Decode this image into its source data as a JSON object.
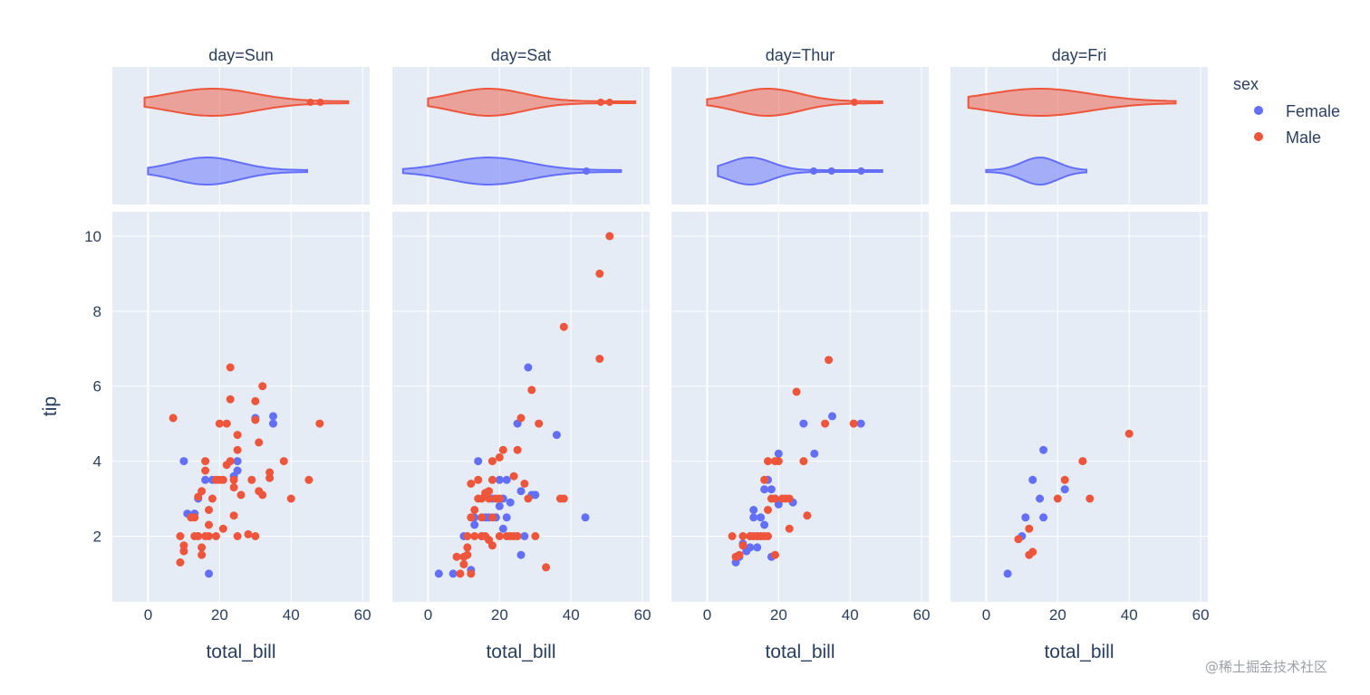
{
  "chart_data": {
    "type": "scatter",
    "facet_by": "day",
    "facets": [
      "day=Sun",
      "day=Sat",
      "day=Thur",
      "day=Fri"
    ],
    "xlabel": "total_bill",
    "ylabel": "tip",
    "x_range": [
      -10,
      62
    ],
    "y_range": [
      0.25,
      10.65
    ],
    "x_ticks": [
      0,
      20,
      40,
      60
    ],
    "y_ticks": [
      2,
      4,
      6,
      8,
      10
    ],
    "marginal_x": "violin",
    "grid": true,
    "legend": {
      "title": "sex",
      "position": "right",
      "items": [
        {
          "name": "Female",
          "color": "#636efa"
        },
        {
          "name": "Male",
          "color": "#ef553b"
        }
      ]
    },
    "violins": [
      {
        "facet": 0,
        "sex": "Male",
        "range": [
          -1,
          56
        ],
        "points": [
          45.4,
          48.2
        ],
        "peak": 18,
        "spread": 12
      },
      {
        "facet": 0,
        "sex": "Female",
        "range": [
          0,
          44.5
        ],
        "points": [],
        "peak": 16.5,
        "spread": 9
      },
      {
        "facet": 1,
        "sex": "Male",
        "range": [
          0,
          58
        ],
        "points": [
          48.3,
          50.8
        ],
        "peak": 17,
        "spread": 10
      },
      {
        "facet": 1,
        "sex": "Female",
        "range": [
          -7,
          54
        ],
        "points": [
          44.3
        ],
        "peak": 17,
        "spread": 11
      },
      {
        "facet": 2,
        "sex": "Male",
        "range": [
          0,
          49
        ],
        "points": [
          41.2
        ],
        "peak": 17,
        "spread": 9
      },
      {
        "facet": 2,
        "sex": "Female",
        "range": [
          3,
          49
        ],
        "points": [
          29.8,
          34.8,
          43.1
        ],
        "peak": 12,
        "spread": 6
      },
      {
        "facet": 3,
        "sex": "Male",
        "range": [
          -5,
          53
        ],
        "points": [],
        "peak": 15,
        "spread": 14
      },
      {
        "facet": 3,
        "sex": "Female",
        "range": [
          0,
          28
        ],
        "points": [],
        "peak": 15,
        "spread": 5
      }
    ],
    "series": [
      {
        "name": "Female",
        "color": "#636efa",
        "facets": [
          [
            [
              10,
              4.0
            ],
            [
              11,
              2.6
            ],
            [
              13,
              2.6
            ],
            [
              14,
              3.0
            ],
            [
              16,
              3.5
            ],
            [
              17,
              1.0
            ],
            [
              18,
              3.5
            ],
            [
              24,
              3.6
            ],
            [
              25,
              3.75
            ],
            [
              25,
              4.0
            ],
            [
              30,
              5.15
            ],
            [
              35,
              5.2
            ],
            [
              35,
              5.0
            ]
          ],
          [
            [
              3,
              1.0
            ],
            [
              7,
              1.0
            ],
            [
              10,
              2.0
            ],
            [
              12,
              1.1
            ],
            [
              13,
              2.3
            ],
            [
              13,
              2.5
            ],
            [
              14,
              4.0
            ],
            [
              15,
              2.0
            ],
            [
              16,
              2.5
            ],
            [
              17,
              2.5
            ],
            [
              18,
              3.0
            ],
            [
              19,
              2.5
            ],
            [
              20,
              2.8
            ],
            [
              20,
              3.5
            ],
            [
              21,
              2.2
            ],
            [
              21,
              3.0
            ],
            [
              22,
              2.5
            ],
            [
              22,
              3.5
            ],
            [
              23,
              2.9
            ],
            [
              25,
              5.0
            ],
            [
              26,
              1.5
            ],
            [
              26,
              3.2
            ],
            [
              27,
              2.0
            ],
            [
              28,
              6.5
            ],
            [
              29,
              3.1
            ],
            [
              30,
              3.1
            ],
            [
              36,
              4.7
            ],
            [
              44,
              2.5
            ]
          ],
          [
            [
              8,
              1.3
            ],
            [
              9,
              1.45
            ],
            [
              10,
              1.8
            ],
            [
              11,
              1.6
            ],
            [
              12,
              1.7
            ],
            [
              12,
              2.0
            ],
            [
              13,
              2.5
            ],
            [
              13,
              2.7
            ],
            [
              14,
              1.7
            ],
            [
              14,
              2.0
            ],
            [
              15,
              2.0
            ],
            [
              15,
              2.5
            ],
            [
              16,
              2.3
            ],
            [
              16,
              3.25
            ],
            [
              17,
              3.5
            ],
            [
              18,
              3.25
            ],
            [
              18,
              1.45
            ],
            [
              19,
              3.0
            ],
            [
              20,
              2.85
            ],
            [
              20,
              4.2
            ],
            [
              24,
              2.9
            ],
            [
              27,
              5.0
            ],
            [
              30,
              4.2
            ],
            [
              35,
              5.2
            ],
            [
              43,
              5.0
            ]
          ],
          [
            [
              6,
              1.0
            ],
            [
              10,
              2.0
            ],
            [
              11,
              2.5
            ],
            [
              13,
              3.5
            ],
            [
              15,
              3.0
            ],
            [
              16,
              2.5
            ],
            [
              16,
              4.3
            ],
            [
              22,
              3.25
            ]
          ]
        ]
      },
      {
        "name": "Male",
        "color": "#ef553b",
        "facets": [
          [
            [
              7,
              5.15
            ],
            [
              9,
              2.0
            ],
            [
              9,
              1.3
            ],
            [
              10,
              1.6
            ],
            [
              10,
              1.75
            ],
            [
              12,
              2.5
            ],
            [
              13,
              2.0
            ],
            [
              13,
              2.5
            ],
            [
              14,
              2.0
            ],
            [
              14,
              3.05
            ],
            [
              15,
              3.2
            ],
            [
              15,
              1.5
            ],
            [
              15,
              1.7
            ],
            [
              16,
              2.0
            ],
            [
              16,
              3.75
            ],
            [
              16,
              4.0
            ],
            [
              17,
              2.0
            ],
            [
              17,
              2.7
            ],
            [
              17,
              2.3
            ],
            [
              18,
              3.0
            ],
            [
              19,
              2.0
            ],
            [
              19,
              3.5
            ],
            [
              20,
              5.0
            ],
            [
              20,
              3.5
            ],
            [
              21,
              2.2
            ],
            [
              21,
              3.5
            ],
            [
              22,
              3.9
            ],
            [
              22,
              5.0
            ],
            [
              23,
              4.0
            ],
            [
              23,
              6.5
            ],
            [
              23,
              5.65
            ],
            [
              24,
              2.55
            ],
            [
              24,
              3.3
            ],
            [
              24,
              3.5
            ],
            [
              25,
              2.0
            ],
            [
              25,
              4.7
            ],
            [
              25,
              4.3
            ],
            [
              26,
              3.1
            ],
            [
              28,
              2.05
            ],
            [
              29,
              3.5
            ],
            [
              30,
              5.1
            ],
            [
              30,
              2.0
            ],
            [
              30,
              5.6
            ],
            [
              31,
              3.2
            ],
            [
              31,
              4.5
            ],
            [
              32,
              3.1
            ],
            [
              32,
              6.0
            ],
            [
              34,
              3.7
            ],
            [
              34,
              3.55
            ],
            [
              38,
              4.0
            ],
            [
              40,
              3.0
            ],
            [
              45,
              3.5
            ],
            [
              48,
              5.0
            ]
          ],
          [
            [
              8,
              1.45
            ],
            [
              9,
              1.0
            ],
            [
              10,
              1.25
            ],
            [
              10,
              1.45
            ],
            [
              11,
              1.5
            ],
            [
              11,
              1.7
            ],
            [
              11,
              2.0
            ],
            [
              12,
              1.0
            ],
            [
              12,
              2.5
            ],
            [
              12,
              3.4
            ],
            [
              13,
              2.0
            ],
            [
              13,
              2.7
            ],
            [
              14,
              3.0
            ],
            [
              14,
              3.5
            ],
            [
              15,
              2.0
            ],
            [
              15,
              2.5
            ],
            [
              15,
              3.0
            ],
            [
              16,
              3.15
            ],
            [
              16,
              2.0
            ],
            [
              17,
              3.2
            ],
            [
              17,
              3.0
            ],
            [
              17,
              1.9
            ],
            [
              18,
              3.5
            ],
            [
              18,
              2.5
            ],
            [
              18,
              1.75
            ],
            [
              18,
              4.0
            ],
            [
              19,
              3.0
            ],
            [
              20,
              2.0
            ],
            [
              20,
              3.0
            ],
            [
              20,
              4.1
            ],
            [
              21,
              4.3
            ],
            [
              22,
              2.0
            ],
            [
              23,
              2.0
            ],
            [
              24,
              2.0
            ],
            [
              24,
              3.6
            ],
            [
              25,
              4.3
            ],
            [
              25,
              2.0
            ],
            [
              26,
              5.15
            ],
            [
              27,
              3.4
            ],
            [
              28,
              3.0
            ],
            [
              29,
              5.9
            ],
            [
              30,
              2.0
            ],
            [
              31,
              5.0
            ],
            [
              37,
              3.0
            ],
            [
              38,
              3.0
            ],
            [
              38,
              7.58
            ],
            [
              33,
              1.17
            ],
            [
              48,
              9.0
            ],
            [
              48,
              6.73
            ],
            [
              50.8,
              10.0
            ]
          ],
          [
            [
              7,
              2.0
            ],
            [
              8,
              1.45
            ],
            [
              9,
              1.5
            ],
            [
              10,
              1.75
            ],
            [
              10,
              2.0
            ],
            [
              12,
              2.0
            ],
            [
              13,
              2.0
            ],
            [
              14,
              2.0
            ],
            [
              15,
              2.0
            ],
            [
              16,
              2.0
            ],
            [
              16,
              3.5
            ],
            [
              17,
              4.0
            ],
            [
              17,
              2.0
            ],
            [
              17,
              2.7
            ],
            [
              18,
              3.0
            ],
            [
              19,
              1.5
            ],
            [
              19,
              3.0
            ],
            [
              19,
              4.0
            ],
            [
              20,
              4.0
            ],
            [
              21,
              3.0
            ],
            [
              22,
              3.0
            ],
            [
              23,
              3.0
            ],
            [
              23,
              2.2
            ],
            [
              25,
              5.85
            ],
            [
              27,
              4.0
            ],
            [
              28,
              2.55
            ],
            [
              33,
              5.0
            ],
            [
              34,
              6.7
            ],
            [
              41,
              5.0
            ]
          ],
          [
            [
              9,
              1.92
            ],
            [
              12,
              1.5
            ],
            [
              12,
              2.2
            ],
            [
              13,
              1.58
            ],
            [
              20,
              3.0
            ],
            [
              22,
              3.5
            ],
            [
              27,
              4.0
            ],
            [
              29,
              3.0
            ],
            [
              40,
              4.73
            ]
          ]
        ]
      }
    ]
  },
  "watermark": "@稀土掘金技术社区"
}
